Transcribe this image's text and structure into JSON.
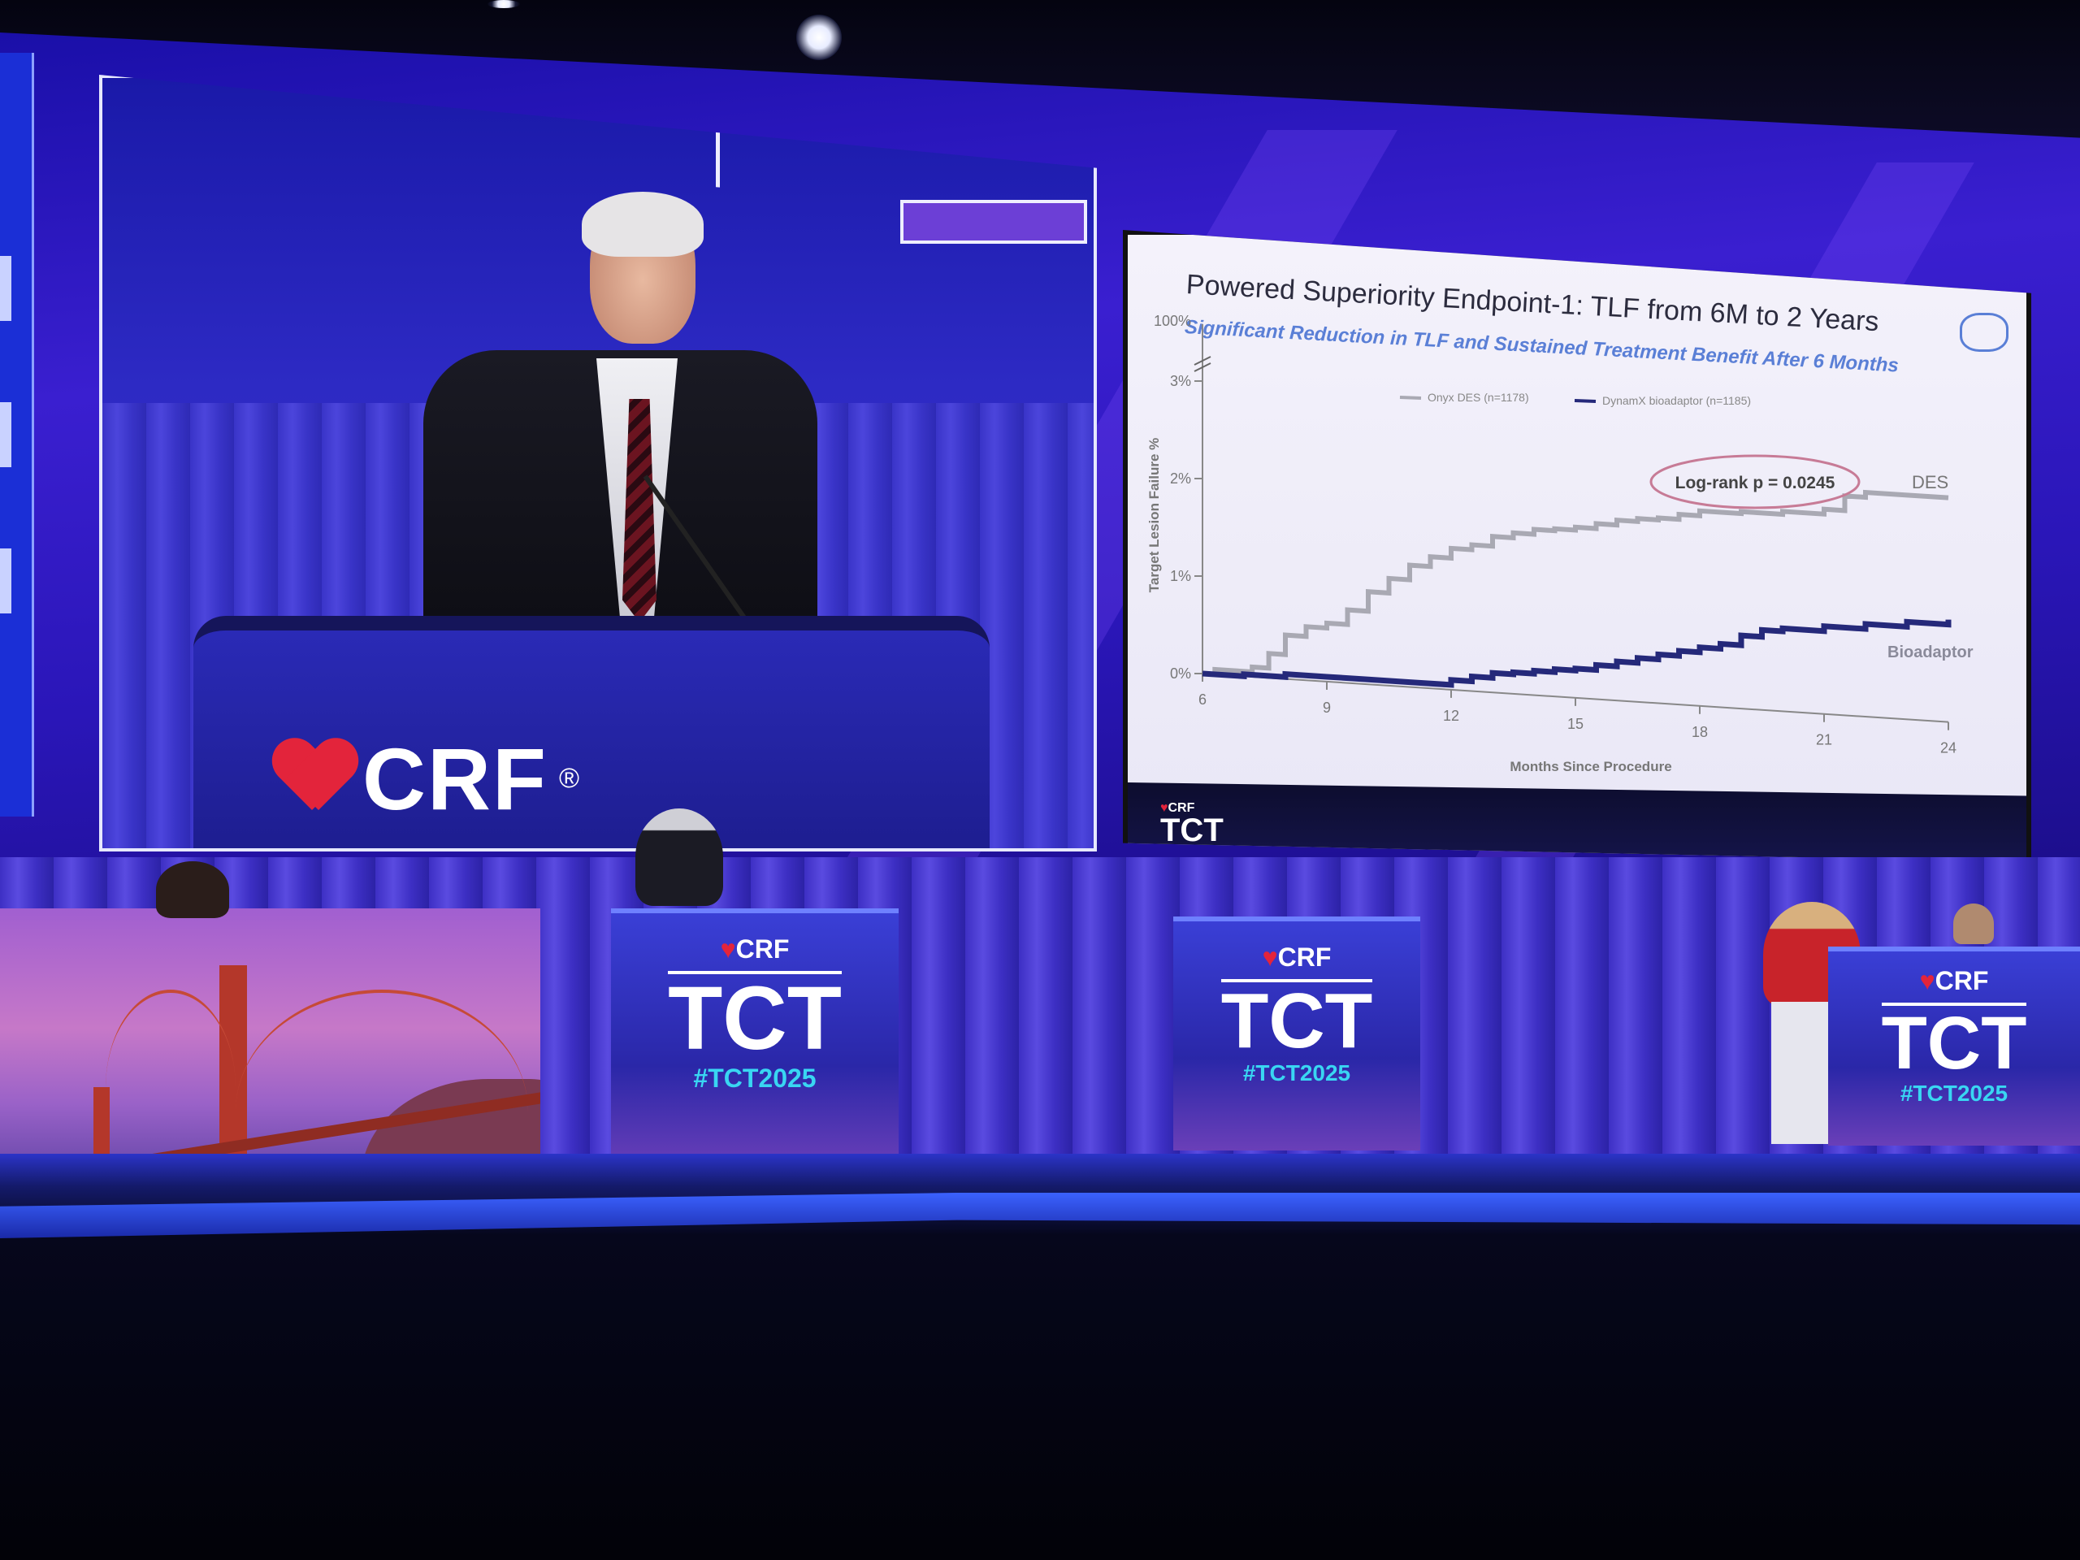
{
  "video_screen": {
    "logo_text": "CRF",
    "logo_mark": "®"
  },
  "slide": {
    "title": "Powered Superiority Endpoint-1: TLF from 6M to 2 Years",
    "subtitle": "Significant Reduction in TLF and Sustained Treatment Benefit After 6 Months",
    "footer_logo_small": "CRF",
    "footer_logo": "TCT"
  },
  "chart_data": {
    "type": "line",
    "title": "Powered Superiority Endpoint-1: TLF from 6M to 2 Years",
    "subtitle": "Significant Reduction in TLF and Sustained Treatment Benefit After 6 Months",
    "xlabel": "Months Since Procedure",
    "ylabel": "Target Lesion Failure %",
    "x_ticks": [
      6,
      9,
      12,
      15,
      18,
      21,
      24
    ],
    "y_ticks": [
      "0%",
      "1%",
      "2%",
      "3%",
      "100%"
    ],
    "y_break": true,
    "xlim": [
      6,
      24
    ],
    "ylim": [
      0,
      3
    ],
    "annotation": "Log-rank p = 0.0245",
    "end_labels": [
      "DES",
      "Bioadaptor"
    ],
    "legend_position": "top-center",
    "series": [
      {
        "name": "Onyx DES (n=1178)",
        "color": "#a9a9b3",
        "x": [
          6,
          6.3,
          7.2,
          7.6,
          8,
          8.5,
          9,
          9.5,
          10,
          10.5,
          11,
          11.5,
          12,
          12.5,
          13,
          13.5,
          14,
          14.5,
          15,
          15.5,
          16,
          16.5,
          17,
          17.5,
          18,
          19,
          20,
          21,
          21.5,
          22,
          23,
          24
        ],
        "y": [
          0,
          0.05,
          0.1,
          0.25,
          0.45,
          0.55,
          0.6,
          0.75,
          0.95,
          1.1,
          1.25,
          1.35,
          1.45,
          1.5,
          1.6,
          1.65,
          1.7,
          1.72,
          1.75,
          1.8,
          1.85,
          1.88,
          1.9,
          1.95,
          2.0,
          2.02,
          2.05,
          2.1,
          2.25,
          2.3,
          2.3,
          2.3
        ]
      },
      {
        "name": "DynamX bioadaptor (n=1185)",
        "color": "#25297a",
        "x": [
          6,
          7,
          8,
          9,
          10,
          11,
          12,
          12.5,
          13,
          13.5,
          14,
          14.5,
          15,
          15.5,
          16,
          16.5,
          17,
          17.5,
          18,
          18.5,
          19,
          19.5,
          20,
          21,
          22,
          23,
          24
        ],
        "y": [
          0,
          0.02,
          0.05,
          0.05,
          0.05,
          0.05,
          0.1,
          0.15,
          0.2,
          0.22,
          0.25,
          0.28,
          0.3,
          0.35,
          0.4,
          0.45,
          0.5,
          0.55,
          0.6,
          0.65,
          0.75,
          0.82,
          0.85,
          0.9,
          0.95,
          1.0,
          1.05
        ]
      }
    ]
  },
  "podiums": [
    {
      "crf": "CRF",
      "tct": "TCT",
      "hashtag": "#TCT2025"
    },
    {
      "crf": "CRF",
      "tct": "TCT",
      "hashtag": "#TCT2025"
    },
    {
      "crf": "CRF",
      "tct": "TCT",
      "hashtag": "#TCT2025"
    }
  ]
}
